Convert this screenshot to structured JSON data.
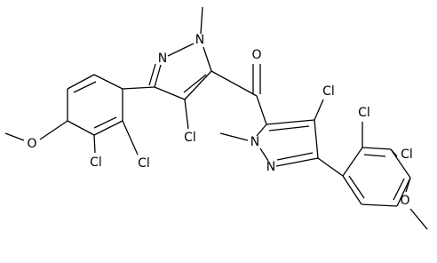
{
  "molecule": {
    "atoms": [
      "N",
      "N",
      "Cl",
      "O",
      "Cl",
      "Cl",
      "O",
      "N",
      "N",
      "Cl",
      "Cl",
      "Cl",
      "O"
    ]
  }
}
